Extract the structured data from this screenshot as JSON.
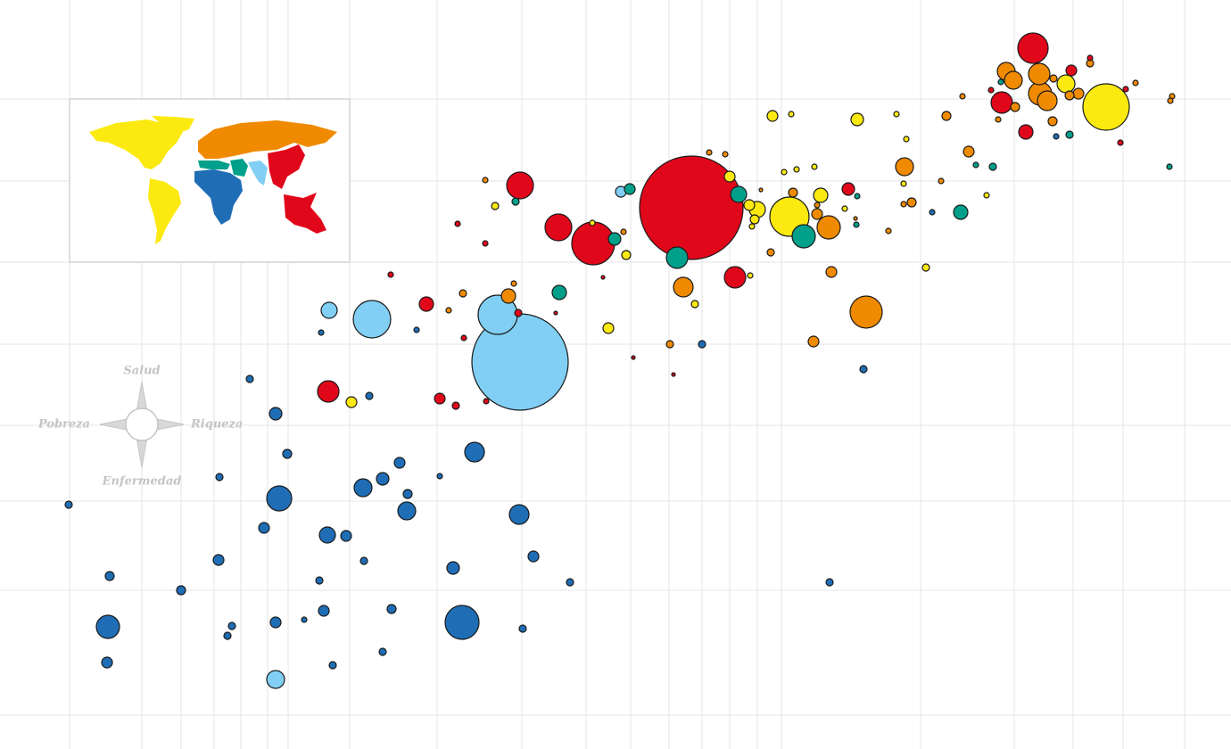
{
  "chart_data": {
    "type": "bubble",
    "xlim": [
      0,
      138
    ],
    "ylim": [
      0,
      84
    ],
    "series": [
      {
        "color": "#1f6db5",
        "x": [
          7.7,
          12.3,
          12.1,
          12.0,
          20.3,
          24.5,
          24.6,
          25.5,
          26.0,
          28.0,
          29.6,
          30.9,
          31.3,
          30.9,
          32.2,
          34.1,
          35.8,
          36.0,
          36.3,
          36.7,
          37.3,
          38.8,
          40.7,
          40.8,
          41.4,
          42.9,
          42.9,
          43.9,
          44.8,
          45.6,
          45.7,
          46.7,
          49.3,
          50.8,
          51.8,
          53.2,
          58.2,
          58.6,
          59.8,
          63.9,
          78.7,
          93.0,
          96.8,
          104.5,
          118.4
        ],
        "values": [
          27.4,
          19.4,
          13.7,
          9.7,
          17.8,
          21.2,
          30.5,
          12.7,
          13.8,
          41.5,
          24.8,
          37.6,
          28.1,
          14.2,
          33.1,
          14.5,
          18.9,
          46.7,
          15.5,
          24.0,
          9.4,
          23.9,
          29.3,
          21.1,
          39.6,
          30.3,
          10.9,
          15.7,
          32.1,
          26.7,
          28.6,
          47.0,
          30.6,
          20.3,
          14.2,
          33.3,
          26.3,
          13.5,
          21.6,
          18.7,
          45.4,
          18.7,
          42.6,
          60.2,
          68.7
        ],
        "sizes": [
          16,
          25,
          169,
          36,
          25,
          36,
          16,
          16,
          16,
          16,
          36,
          49,
          196,
          36,
          25,
          9,
          16,
          9,
          36,
          81,
          16,
          36,
          100,
          16,
          16,
          49,
          16,
          25,
          36,
          100,
          25,
          9,
          9,
          49,
          361,
          121,
          121,
          16,
          36,
          16,
          16,
          16,
          16,
          9,
          9
        ]
      },
      {
        "color": "#81cff4",
        "x": [
          30.9,
          36.9,
          41.7,
          55.8,
          58.3,
          69.6
        ],
        "values": [
          7.8,
          49.2,
          48.2,
          48.7,
          43.4,
          62.5
        ],
        "sizes": [
          100,
          81,
          441,
          484,
          2916,
          36
        ]
      },
      {
        "color": "#00a08a",
        "x": [
          57.8,
          62.7,
          68.9,
          70.6,
          75.9,
          82.8,
          90.1,
          96.1,
          96.0,
          107.7,
          109.4,
          111.3,
          119.9,
          131.1,
          112.2
        ],
        "values": [
          61.4,
          51.2,
          57.2,
          62.8,
          55.1,
          62.2,
          57.5,
          62.0,
          58.8,
          60.2,
          65.5,
          65.3,
          68.9,
          65.3,
          74.8
        ],
        "sizes": [
          16,
          64,
          49,
          36,
          144,
          81,
          169,
          9,
          9,
          64,
          9,
          16,
          16,
          9,
          9
        ]
      },
      {
        "color": "#fbe910",
        "x": [
          39.4,
          55.5,
          66.4,
          68.2,
          70.2,
          77.9,
          81.8,
          84.1,
          84.3,
          84.6,
          84.9,
          86.6,
          87.9,
          88.7,
          89.3,
          91.3,
          88.5,
          92.0,
          94.7,
          96.1,
          100.5,
          101.6,
          101.3,
          103.8,
          110.6,
          119.5,
          124.0,
          84.0
        ],
        "values": [
          38.9,
          60.9,
          59.0,
          47.2,
          55.4,
          49.9,
          64.2,
          53.1,
          58.6,
          59.4,
          60.5,
          71.0,
          64.7,
          71.2,
          65.0,
          65.3,
          59.7,
          62.1,
          60.6,
          70.6,
          71.2,
          68.4,
          63.4,
          54.0,
          62.1,
          74.6,
          72.0,
          61.0
        ],
        "sizes": [
          36,
          16,
          9,
          36,
          25,
          16,
          36,
          9,
          9,
          25,
          81,
          36,
          9,
          9,
          9,
          9,
          484,
          64,
          9,
          49,
          9,
          9,
          9,
          16,
          9,
          100,
          676,
          36
        ]
      },
      {
        "color": "#f08a00",
        "x": [
          50.3,
          51.9,
          54.4,
          57.0,
          57.6,
          69.9,
          75.1,
          76.6,
          79.5,
          81.3,
          86.4,
          88.9,
          91.2,
          91.6,
          91.6,
          92.9,
          93.2,
          97.1,
          99.6,
          101.4,
          101.3,
          102.2,
          105.5,
          106.1,
          107.9,
          108.6,
          111.9,
          112.8,
          113.6,
          113.8,
          116.5,
          116.6,
          117.4,
          118.1,
          118.0,
          119.9,
          120.9,
          122.2,
          127.3,
          131.4,
          131.2,
          95.9,
          85.3
        ],
        "values": [
          49.2,
          51.1,
          63.8,
          50.8,
          52.2,
          58.0,
          45.4,
          51.8,
          66.9,
          66.7,
          55.7,
          62.4,
          45.7,
          60.0,
          61.0,
          58.5,
          53.5,
          49.0,
          58.1,
          65.3,
          61.1,
          61.3,
          63.7,
          71.0,
          73.2,
          67.0,
          70.6,
          76.0,
          75.0,
          72.0,
          75.7,
          73.5,
          72.7,
          75.2,
          70.4,
          73.3,
          73.5,
          76.9,
          74.7,
          73.2,
          72.7,
          59.5,
          62.7
        ],
        "sizes": [
          9,
          16,
          9,
          64,
          9,
          9,
          16,
          121,
          9,
          9,
          16,
          25,
          36,
          36,
          9,
          169,
          36,
          324,
          9,
          100,
          9,
          25,
          9,
          25,
          9,
          36,
          9,
          100,
          100,
          25,
          144,
          169,
          121,
          16,
          25,
          25,
          36,
          16,
          9,
          9,
          9,
          4,
          4
        ]
      },
      {
        "color": "#e1071b",
        "x": [
          43.8,
          47.8,
          36.8,
          49.3,
          51.1,
          51.3,
          52.0,
          54.4,
          54.5,
          58.1,
          58.3,
          62.3,
          62.6,
          66.5,
          67.6,
          71.0,
          75.5,
          77.5,
          82.4,
          95.1,
          111.1,
          112.3,
          115.0,
          115.8,
          120.1,
          122.2,
          125.6,
          126.2
        ],
        "values": [
          53.2,
          49.9,
          40.1,
          39.3,
          38.5,
          58.9,
          46.1,
          56.7,
          39.0,
          48.9,
          63.2,
          48.9,
          58.5,
          56.7,
          52.9,
          43.9,
          42.0,
          60.7,
          52.9,
          62.8,
          73.9,
          72.5,
          69.2,
          78.6,
          76.1,
          77.5,
          68.0,
          74.0
        ],
        "sizes": [
          9,
          64,
          144,
          36,
          16,
          9,
          9,
          9,
          9,
          16,
          225,
          4,
          225,
          576,
          4,
          4,
          4,
          3364,
          144,
          49,
          9,
          144,
          64,
          289,
          36,
          9,
          9,
          9
        ]
      }
    ]
  },
  "compass": {
    "north": "Salud",
    "west": "Pobreza",
    "east": "Riqueza",
    "south": "Enfermedad"
  }
}
